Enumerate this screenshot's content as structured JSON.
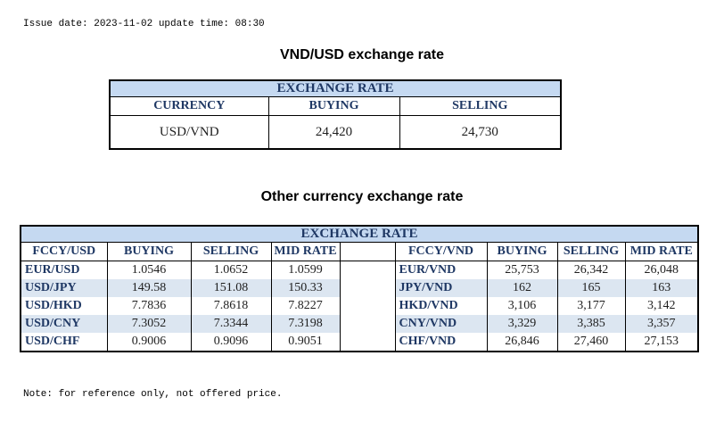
{
  "issue_line": "Issue date: 2023-11-02 update time: 08:30",
  "usd_section": {
    "title": "VND/USD exchange rate",
    "header": "EXCHANGE RATE",
    "columns": [
      "CURRENCY",
      "BUYING",
      "SELLING"
    ],
    "row": {
      "currency": "USD/VND",
      "buying": "24,420",
      "selling": "24,730"
    }
  },
  "other_section": {
    "title": "Other currency exchange rate",
    "header": "EXCHANGE  RATE",
    "left_columns": [
      "FCCY/USD",
      "BUYING",
      "SELLING",
      "MID RATE"
    ],
    "right_columns": [
      "FCCY/VND",
      "BUYING",
      "SELLING",
      "MID RATE"
    ],
    "rows": [
      {
        "pair_usd": "EUR/USD",
        "buy_usd": "1.0546",
        "sell_usd": "1.0652",
        "mid_usd": "1.0599",
        "pair_vnd": "EUR/VND",
        "buy_vnd": "25,753",
        "sell_vnd": "26,342",
        "mid_vnd": "26,048"
      },
      {
        "pair_usd": "USD/JPY",
        "buy_usd": "149.58",
        "sell_usd": "151.08",
        "mid_usd": "150.33",
        "pair_vnd": "JPY/VND",
        "buy_vnd": "162",
        "sell_vnd": "165",
        "mid_vnd": "163"
      },
      {
        "pair_usd": "USD/HKD",
        "buy_usd": "7.7836",
        "sell_usd": "7.8618",
        "mid_usd": "7.8227",
        "pair_vnd": "HKD/VND",
        "buy_vnd": "3,106",
        "sell_vnd": "3,177",
        "mid_vnd": "3,142"
      },
      {
        "pair_usd": "USD/CNY",
        "buy_usd": "7.3052",
        "sell_usd": "7.3344",
        "mid_usd": "7.3198",
        "pair_vnd": "CNY/VND",
        "buy_vnd": "3,329",
        "sell_vnd": "3,385",
        "mid_vnd": "3,357"
      },
      {
        "pair_usd": "USD/CHF",
        "buy_usd": "0.9006",
        "sell_usd": "0.9096",
        "mid_usd": "0.9051",
        "pair_vnd": "CHF/VND",
        "buy_vnd": "26,846",
        "sell_vnd": "27,460",
        "mid_vnd": "27,153"
      }
    ]
  },
  "note": "Note: for reference only, not offered price.",
  "colors": {
    "header_fill": "#c5d9f1",
    "row_shade": "#dce6f1",
    "label_text": "#1f3864"
  }
}
